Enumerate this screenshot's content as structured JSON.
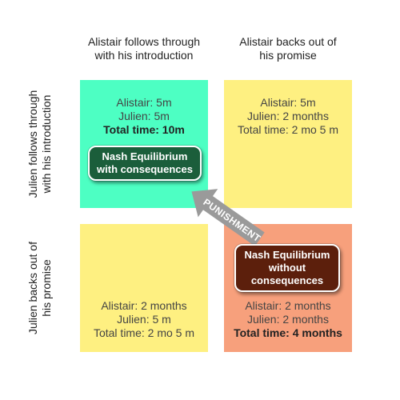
{
  "columns": [
    {
      "line1": "Alistair follows through",
      "line2": "with his introduction"
    },
    {
      "line1": "Alistair backs out of",
      "line2": "his promise"
    }
  ],
  "rows": [
    {
      "line1": "Julien follows through",
      "line2": "with his introduction"
    },
    {
      "line1": "Julien backs out of",
      "line2": "his promise"
    }
  ],
  "cells": {
    "top_left": {
      "alistair": "Alistair: 5m",
      "julien": "Julien: 5m",
      "total": "Total time: 10m",
      "color": "#4dffc3"
    },
    "top_right": {
      "alistair": "Alistair: 5m",
      "julien": "Julien: 2 months",
      "total": "Total time: 2 mo 5 m",
      "color": "#fef081"
    },
    "bottom_left": {
      "alistair": "Alistair: 2 months",
      "julien": "Julien: 5 m",
      "total": "Total time: 2 mo 5 m",
      "color": "#fef081"
    },
    "bottom_right": {
      "alistair": "Alistair: 2 months",
      "julien": "Julien: 2 months",
      "total": "Total time: 4 months",
      "color": "#f7a07c"
    }
  },
  "badges": {
    "with_consequences": {
      "line1": "Nash Equilibrium",
      "line2": "with consequences",
      "color": "#1b5e3b"
    },
    "without_consequences": {
      "line1": "Nash Equilibrium",
      "line2": "without",
      "line3": "consequences",
      "color": "#5c1f0c"
    }
  },
  "arrow": {
    "label": "PUNISHMENT",
    "color": "#9a9a9a"
  }
}
